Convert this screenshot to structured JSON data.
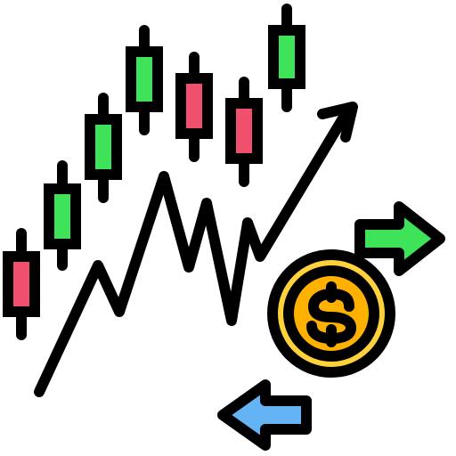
{
  "icon": {
    "name": "trading-chart-dollar-exchange-icon",
    "colors": {
      "outline": "#000000",
      "candle_up": "#3ee35a",
      "candle_down": "#f0506e",
      "coin_outer": "#ffd23c",
      "coin_inner": "#ffb100",
      "arrow_right": "#3ee35a",
      "arrow_left": "#64b4f5",
      "background": "#ffffff"
    },
    "candles": [
      {
        "direction": "down"
      },
      {
        "direction": "up"
      },
      {
        "direction": "up"
      },
      {
        "direction": "up"
      },
      {
        "direction": "down"
      },
      {
        "direction": "down"
      },
      {
        "direction": "up"
      }
    ],
    "coin_symbol": "$"
  }
}
